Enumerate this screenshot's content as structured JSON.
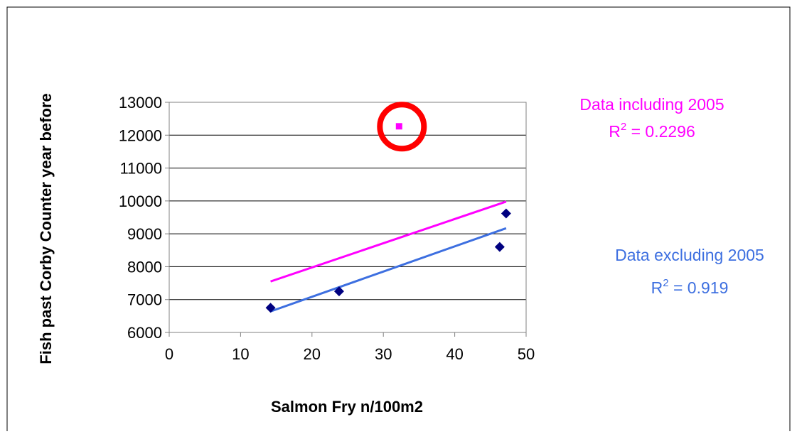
{
  "chart_data": {
    "type": "scatter",
    "xlabel": "Salmon Fry n/100m2",
    "ylabel": "Fish past Corby Counter year before",
    "xlim": [
      0,
      50
    ],
    "ylim": [
      6000,
      13000
    ],
    "x_ticks": [
      0,
      10,
      20,
      30,
      40,
      50
    ],
    "y_ticks": [
      6000,
      7000,
      8000,
      9000,
      10000,
      11000,
      12000,
      13000
    ],
    "grid": "horizontal",
    "series": [
      {
        "marker": "diamond",
        "color": "#000080",
        "x": [
          14.2,
          23.8,
          46.3,
          47.2
        ],
        "y": [
          6750,
          7250,
          8600,
          9620
        ]
      },
      {
        "marker": "square",
        "color": "#ff00ff",
        "x": [
          32.2
        ],
        "y": [
          12270
        ]
      }
    ],
    "trendlines": [
      {
        "color": "#ff00ff",
        "x": [
          14.2,
          47.2
        ],
        "y": [
          7550,
          9980
        ]
      },
      {
        "color": "#3d6fe0",
        "x": [
          14.2,
          47.2
        ],
        "y": [
          6640,
          9170
        ]
      }
    ],
    "highlight": {
      "shape": "circle",
      "color": "#ff0000",
      "x": 32.6,
      "y": 12260
    },
    "annotations": [
      {
        "line1": "Data including 2005",
        "r2_label": "R",
        "r2_sup": "2",
        "r2_value": " = 0.2296",
        "color": "#ff00ff"
      },
      {
        "line1": "Data excluding 2005",
        "r2_label": "R",
        "r2_sup": "2",
        "r2_value": " = 0.919",
        "color": "#3d6fe0"
      }
    ]
  }
}
